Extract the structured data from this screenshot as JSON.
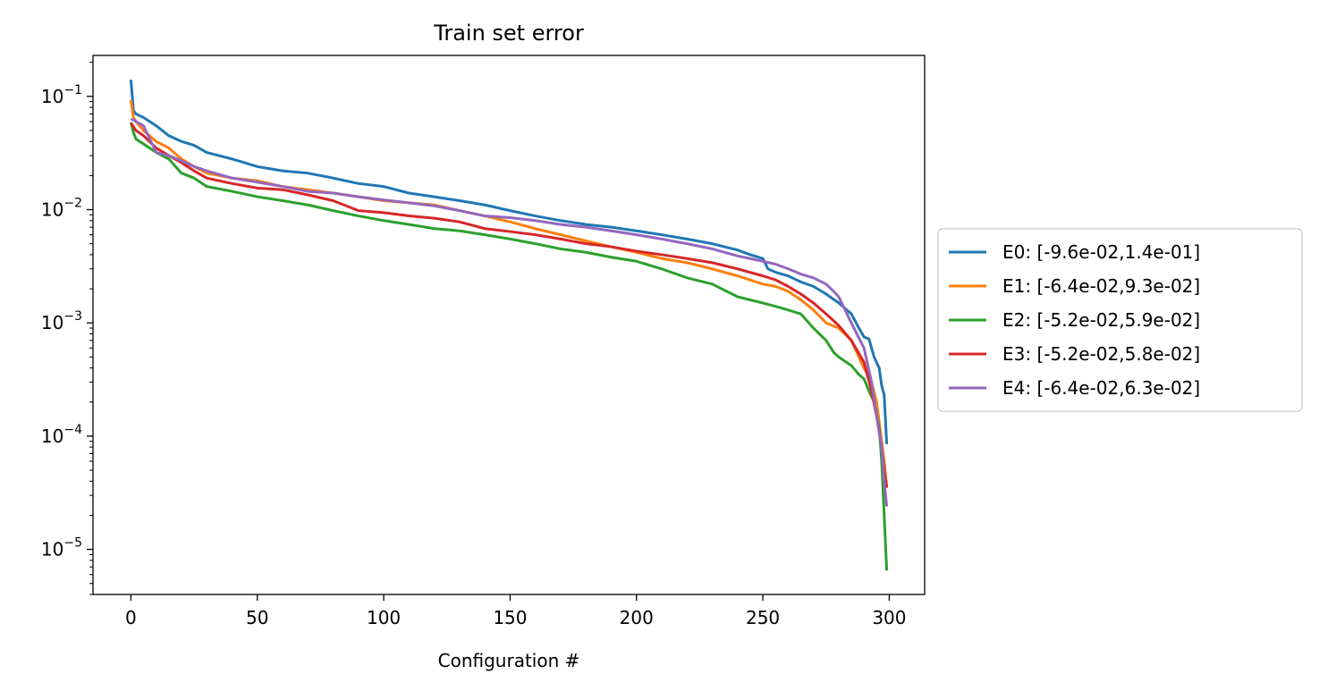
{
  "chart_data": {
    "type": "line",
    "title": "Train set error",
    "xlabel": "Configuration #",
    "ylabel": "",
    "xlim": [
      -15,
      314
    ],
    "ylim": [
      4e-06,
      0.23
    ],
    "yscale": "log",
    "grid": false,
    "legend_position": "center-right-outside",
    "x_ticks": [
      0,
      50,
      100,
      150,
      200,
      250,
      300
    ],
    "x_tick_labels": [
      "0",
      "50",
      "100",
      "150",
      "200",
      "250",
      "300"
    ],
    "y_ticks": [
      1e-05,
      0.0001,
      0.001,
      0.01,
      0.1
    ],
    "y_tick_labels": [
      {
        "base": "10",
        "exp": "−5"
      },
      {
        "base": "10",
        "exp": "−4"
      },
      {
        "base": "10",
        "exp": "−3"
      },
      {
        "base": "10",
        "exp": "−2"
      },
      {
        "base": "10",
        "exp": "−1"
      }
    ],
    "series": [
      {
        "name": "E0: [-9.6e-02,1.4e-01]",
        "color": "#1f77b4",
        "x": [
          0,
          1,
          2,
          5,
          10,
          15,
          20,
          25,
          30,
          40,
          50,
          60,
          70,
          80,
          90,
          100,
          110,
          120,
          130,
          140,
          150,
          160,
          170,
          180,
          190,
          200,
          210,
          220,
          230,
          240,
          245,
          250,
          252,
          255,
          260,
          265,
          270,
          275,
          280,
          285,
          288,
          290,
          292,
          294,
          296,
          297,
          298,
          299
        ],
        "y": [
          0.14,
          0.075,
          0.07,
          0.065,
          0.055,
          0.045,
          0.04,
          0.037,
          0.032,
          0.028,
          0.024,
          0.022,
          0.021,
          0.019,
          0.017,
          0.016,
          0.014,
          0.013,
          0.012,
          0.011,
          0.0098,
          0.0088,
          0.008,
          0.0074,
          0.007,
          0.0065,
          0.006,
          0.0055,
          0.005,
          0.0044,
          0.004,
          0.0037,
          0.003,
          0.0028,
          0.0026,
          0.0023,
          0.0021,
          0.0018,
          0.0015,
          0.0012,
          0.0009,
          0.00075,
          0.00072,
          0.0005,
          0.0004,
          0.00028,
          0.00023,
          8.5e-05
        ]
      },
      {
        "name": "E1: [-6.4e-02,9.3e-02]",
        "color": "#ff7f0e",
        "x": [
          0,
          1,
          2,
          5,
          10,
          15,
          20,
          25,
          30,
          40,
          50,
          60,
          70,
          80,
          90,
          100,
          110,
          120,
          130,
          140,
          150,
          160,
          170,
          180,
          190,
          200,
          210,
          220,
          230,
          240,
          250,
          255,
          260,
          265,
          270,
          275,
          280,
          285,
          290,
          293,
          295,
          297,
          298,
          299
        ],
        "y": [
          0.093,
          0.065,
          0.06,
          0.05,
          0.04,
          0.035,
          0.028,
          0.024,
          0.021,
          0.019,
          0.018,
          0.016,
          0.015,
          0.014,
          0.013,
          0.012,
          0.0115,
          0.011,
          0.0098,
          0.0088,
          0.0078,
          0.0068,
          0.006,
          0.0053,
          0.0047,
          0.0042,
          0.0037,
          0.0034,
          0.003,
          0.0026,
          0.0022,
          0.0021,
          0.0019,
          0.0016,
          0.0013,
          0.001,
          0.0009,
          0.0007,
          0.0004,
          0.0003,
          0.0002,
          9e-05,
          6e-05,
          3.6e-05
        ]
      },
      {
        "name": "E2: [-5.2e-02,5.9e-02]",
        "color": "#2ca02c",
        "x": [
          0,
          1,
          2,
          5,
          10,
          15,
          20,
          25,
          30,
          40,
          50,
          60,
          70,
          80,
          90,
          100,
          110,
          120,
          130,
          140,
          150,
          160,
          170,
          180,
          190,
          200,
          210,
          220,
          230,
          240,
          250,
          255,
          260,
          265,
          270,
          275,
          278,
          280,
          285,
          288,
          290,
          292,
          294,
          296,
          297,
          298,
          299
        ],
        "y": [
          0.059,
          0.048,
          0.042,
          0.038,
          0.032,
          0.028,
          0.021,
          0.019,
          0.016,
          0.0145,
          0.013,
          0.012,
          0.011,
          0.0098,
          0.0088,
          0.008,
          0.0074,
          0.0068,
          0.0065,
          0.006,
          0.0055,
          0.005,
          0.0045,
          0.0042,
          0.0038,
          0.0035,
          0.003,
          0.0025,
          0.0022,
          0.0017,
          0.0015,
          0.0014,
          0.0013,
          0.0012,
          0.0009,
          0.0007,
          0.00055,
          0.0005,
          0.00042,
          0.00035,
          0.00032,
          0.00025,
          0.0002,
          0.00012,
          6e-05,
          2e-05,
          6.5e-06
        ]
      },
      {
        "name": "E3: [-5.2e-02,5.8e-02]",
        "color": "#d62728",
        "x": [
          0,
          1,
          2,
          5,
          10,
          15,
          20,
          25,
          30,
          40,
          50,
          60,
          70,
          80,
          90,
          100,
          110,
          120,
          130,
          140,
          150,
          160,
          170,
          180,
          190,
          200,
          210,
          220,
          230,
          240,
          250,
          255,
          260,
          265,
          270,
          275,
          280,
          285,
          290,
          293,
          295,
          297,
          298,
          299
        ],
        "y": [
          0.058,
          0.054,
          0.05,
          0.045,
          0.035,
          0.03,
          0.026,
          0.022,
          0.019,
          0.017,
          0.0155,
          0.015,
          0.0135,
          0.012,
          0.0098,
          0.0094,
          0.0088,
          0.0084,
          0.0078,
          0.0068,
          0.0064,
          0.006,
          0.0055,
          0.005,
          0.0047,
          0.0043,
          0.004,
          0.0037,
          0.0034,
          0.003,
          0.0026,
          0.0024,
          0.0021,
          0.0018,
          0.0015,
          0.0012,
          0.00095,
          0.0007,
          0.00045,
          0.00025,
          0.00015,
          8e-05,
          5e-05,
          3.5e-05
        ]
      },
      {
        "name": "E4: [-6.4e-02,6.3e-02]",
        "color": "#9467bd",
        "x": [
          0,
          1,
          2,
          5,
          10,
          15,
          20,
          25,
          30,
          40,
          50,
          60,
          70,
          80,
          90,
          100,
          110,
          120,
          130,
          140,
          150,
          160,
          170,
          180,
          190,
          200,
          210,
          220,
          230,
          240,
          250,
          255,
          260,
          265,
          270,
          275,
          278,
          280,
          285,
          290,
          293,
          295,
          297,
          298,
          299
        ],
        "y": [
          0.063,
          0.062,
          0.06,
          0.055,
          0.032,
          0.03,
          0.027,
          0.024,
          0.022,
          0.019,
          0.0175,
          0.016,
          0.0145,
          0.014,
          0.013,
          0.0122,
          0.0115,
          0.0108,
          0.0098,
          0.0088,
          0.0085,
          0.008,
          0.0074,
          0.007,
          0.0065,
          0.006,
          0.0055,
          0.005,
          0.0045,
          0.0039,
          0.0035,
          0.0033,
          0.003,
          0.0027,
          0.0025,
          0.0022,
          0.0019,
          0.0017,
          0.001,
          0.0006,
          0.0003,
          0.00015,
          8e-05,
          4e-05,
          2.4e-05
        ]
      }
    ]
  }
}
